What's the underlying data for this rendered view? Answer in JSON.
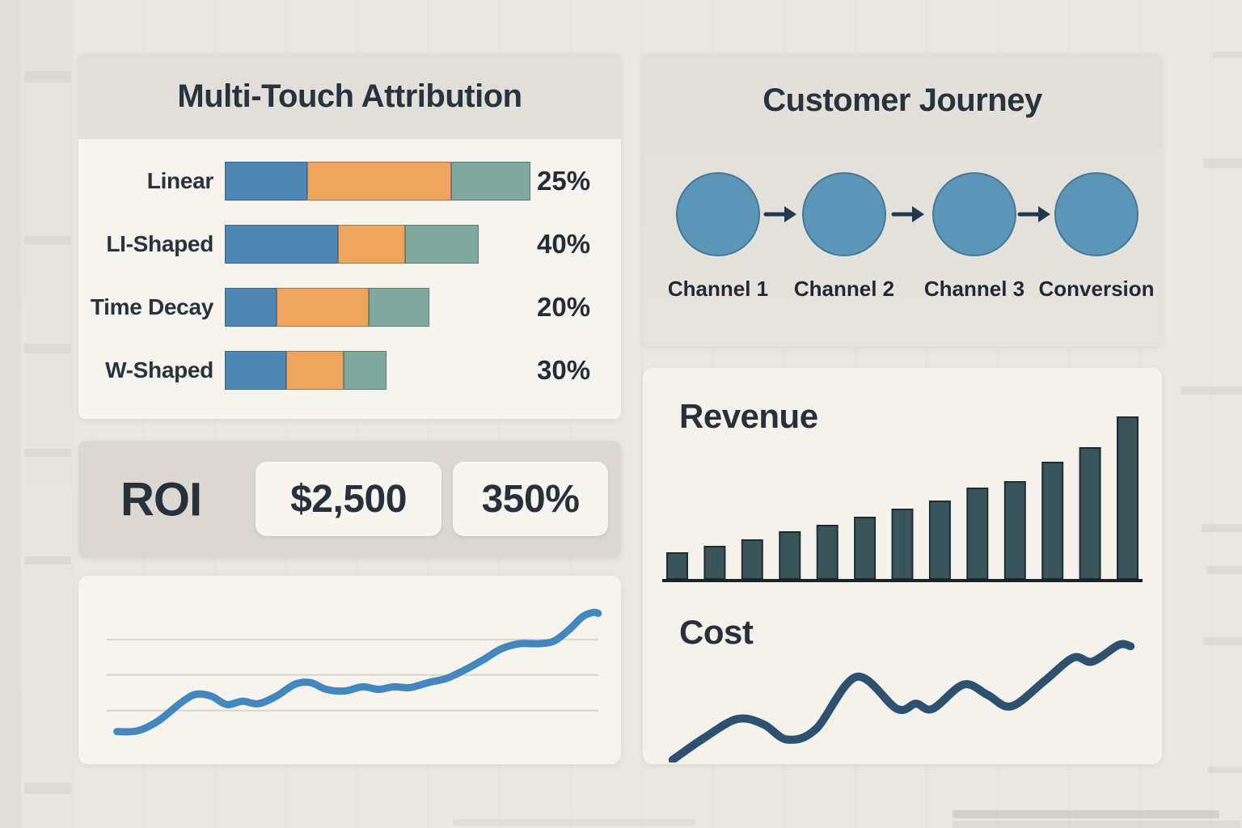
{
  "page": {
    "background_color": "#eae7e2",
    "text_color": "#28333e"
  },
  "attribution": {
    "title": "Multi-Touch Attribution"
  },
  "journey": {
    "title": "Customer Journey",
    "steps": [
      "Channel 1",
      "Channel 2",
      "Channel 3",
      "Conversion"
    ],
    "circle_color": "#5b95b8",
    "circle_border_color": "#47789a",
    "arrow_color": "#24384d"
  },
  "roi": {
    "label": "ROI",
    "value_cards": [
      "$2,500",
      "350%"
    ]
  },
  "chart_data": [
    {
      "id": "attribution",
      "type": "bar",
      "orientation": "horizontal",
      "stacked": true,
      "title": "Multi-Touch Attribution",
      "categories": [
        "Linear",
        "LI-Shaped",
        "Time Decay",
        "W-Shaped"
      ],
      "value_labels": [
        "25%",
        "40%",
        "20%",
        "30%"
      ],
      "series": [
        {
          "name": "touch-segment-blue",
          "color": "#4f87b4",
          "values": [
            27,
            37,
            17,
            20
          ]
        },
        {
          "name": "touch-segment-orange",
          "color": "#eda45e",
          "values": [
            47,
            22,
            30,
            19
          ]
        },
        {
          "name": "touch-segment-teal",
          "color": "#7fa99f",
          "values": [
            26,
            24,
            20,
            14
          ]
        }
      ],
      "xlim": [
        0,
        100
      ],
      "axes": "none",
      "legend": "none",
      "note": "segment widths estimated as percent of axis; printed percentages are value_labels"
    },
    {
      "id": "roi-trend",
      "type": "line",
      "title": "",
      "points": [
        [
          5.5,
          13.5
        ],
        [
          9.5,
          14
        ],
        [
          13.5,
          20
        ],
        [
          17.5,
          30
        ],
        [
          20.5,
          35.5
        ],
        [
          23.5,
          34.5
        ],
        [
          26.5,
          29.5
        ],
        [
          29.5,
          31.5
        ],
        [
          32.5,
          30
        ],
        [
          36,
          34.5
        ],
        [
          39.5,
          41.5
        ],
        [
          42.5,
          42.5
        ],
        [
          45.5,
          38.5
        ],
        [
          49,
          37.5
        ],
        [
          52.5,
          40
        ],
        [
          55.5,
          38.5
        ],
        [
          58.5,
          40
        ],
        [
          61.5,
          39.5
        ],
        [
          65,
          42.5
        ],
        [
          68.5,
          45
        ],
        [
          72,
          50
        ],
        [
          75.5,
          56
        ],
        [
          79,
          62.5
        ],
        [
          82.5,
          65.5
        ],
        [
          86,
          65.5
        ],
        [
          89,
          67
        ],
        [
          92,
          74
        ],
        [
          94.5,
          81.5
        ],
        [
          96.5,
          84
        ],
        [
          97.5,
          83.5
        ]
      ],
      "units": "percent of plot area (no axis labels shown)",
      "color": "#4287bd",
      "stroke_width": 9,
      "gridlines_y_pct": [
        32,
        53,
        74
      ],
      "gridline_color": "#d9d5cd",
      "grid": true,
      "legend": "none",
      "axes": "none"
    },
    {
      "id": "revenue",
      "type": "bar",
      "title": "Revenue",
      "values": [
        16,
        20,
        24,
        29,
        33,
        38,
        43,
        48,
        56,
        60,
        72,
        81,
        100
      ],
      "ylim": [
        0,
        100
      ],
      "units": "relative (no axis labels shown)",
      "color": "#3a5559",
      "bar_outline_color": "#1c2c33",
      "baseline_color": "#1c2429",
      "axes": "baseline-only",
      "grid": false,
      "legend": "none"
    },
    {
      "id": "cost",
      "type": "line",
      "title": "Cost",
      "points": [
        [
          2,
          2
        ],
        [
          8.5,
          19
        ],
        [
          15.5,
          34
        ],
        [
          21,
          30
        ],
        [
          26,
          18
        ],
        [
          32,
          26
        ],
        [
          40.5,
          67
        ],
        [
          49,
          42
        ],
        [
          53,
          46
        ],
        [
          56.5,
          42
        ],
        [
          63,
          61
        ],
        [
          68,
          53
        ],
        [
          73,
          44
        ],
        [
          80,
          64
        ],
        [
          86,
          82
        ],
        [
          90,
          79
        ],
        [
          95.5,
          92
        ],
        [
          98,
          91
        ]
      ],
      "units": "percent of plot area (no axis labels shown)",
      "color": "#2e5170",
      "stroke_width": 10,
      "grid": false,
      "legend": "none",
      "axes": "none"
    }
  ]
}
